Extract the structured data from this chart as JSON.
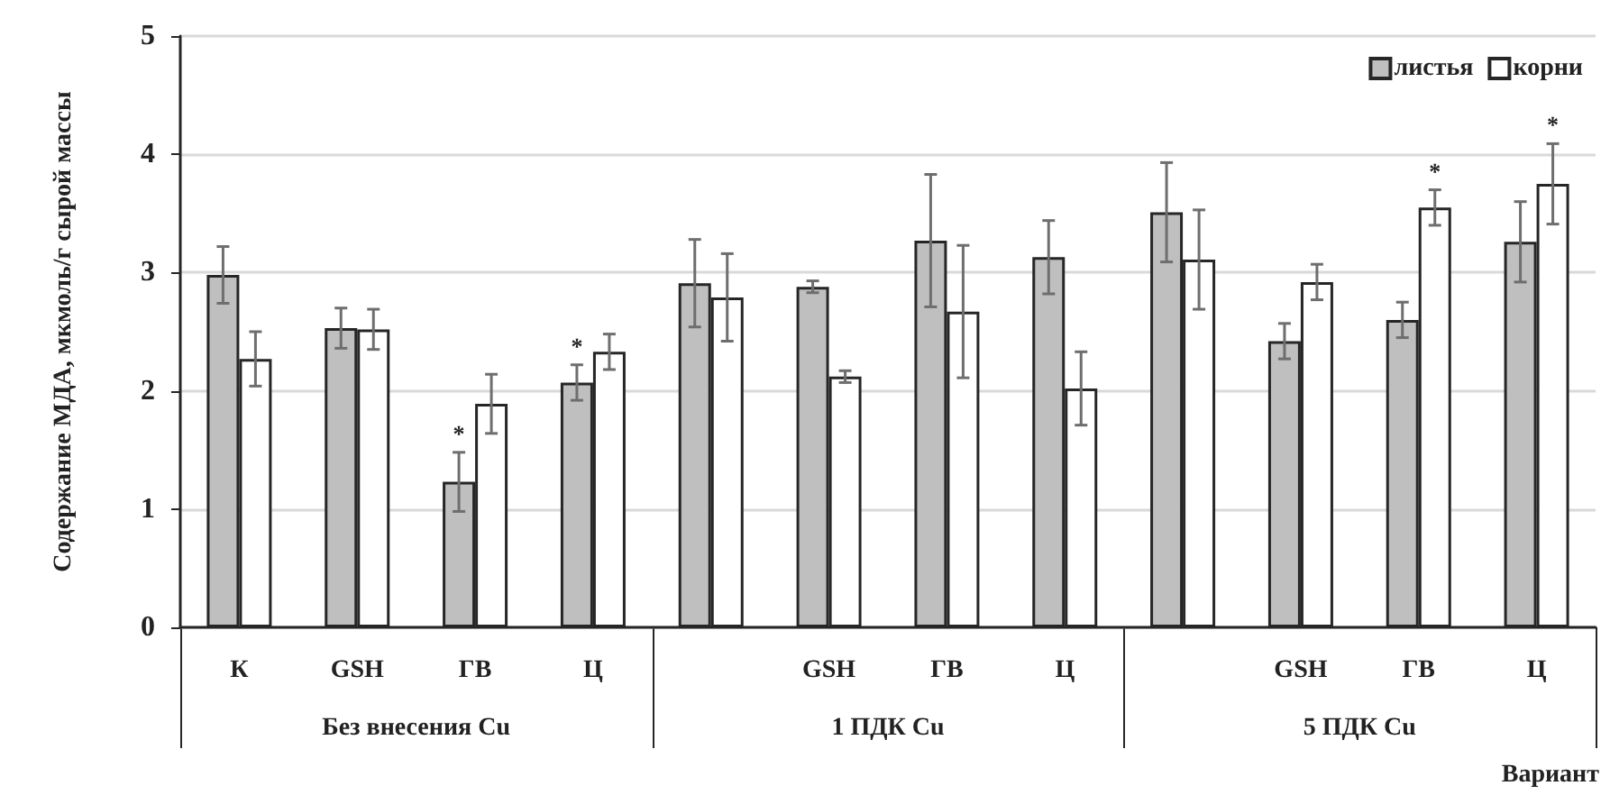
{
  "chart_data": {
    "type": "bar",
    "categories": [
      "К",
      "GSH",
      "ГВ",
      "Ц",
      null,
      "GSH",
      "ГВ",
      "Ц",
      null,
      "GSH",
      "ГВ",
      "Ц"
    ],
    "series": [
      {
        "name": "листья",
        "color": "#bfbfbf",
        "values": [
          2.98,
          2.53,
          1.23,
          2.07,
          2.91,
          2.88,
          3.27,
          3.13,
          3.51,
          2.42,
          2.6,
          3.26
        ],
        "errors": [
          0.24,
          0.17,
          0.25,
          0.15,
          0.37,
          0.05,
          0.56,
          0.31,
          0.42,
          0.15,
          0.15,
          0.34
        ],
        "value_labels": [
          null,
          null,
          "*",
          "*",
          null,
          null,
          null,
          null,
          null,
          null,
          null,
          null
        ]
      },
      {
        "name": "корни",
        "color": "#ffffff",
        "values": [
          2.27,
          2.52,
          1.89,
          2.33,
          2.79,
          2.12,
          2.67,
          2.02,
          3.11,
          2.92,
          3.55,
          3.75
        ],
        "errors": [
          0.23,
          0.17,
          0.25,
          0.15,
          0.37,
          0.05,
          0.56,
          0.31,
          0.42,
          0.15,
          0.15,
          0.34
        ],
        "value_labels": [
          null,
          null,
          null,
          null,
          null,
          null,
          null,
          null,
          null,
          null,
          "*",
          "*"
        ]
      }
    ],
    "xlabel": "Вариант",
    "ylabel": "Содержание МДА, мкмоль/г сырой массы",
    "annotations": [
      "Без внесения Cu",
      "1 ПДК Cu",
      "5 ПДК Cu"
    ],
    "ylim": [
      0,
      5
    ],
    "yticks": [
      0,
      1,
      2,
      3,
      4,
      5
    ],
    "grid": "y",
    "legend": "top right"
  }
}
